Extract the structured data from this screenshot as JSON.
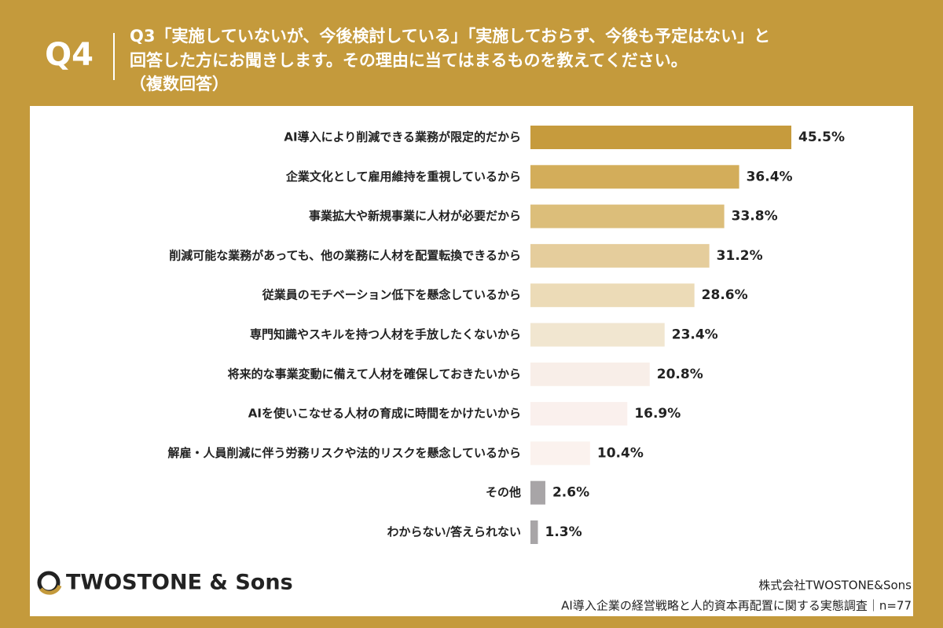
{
  "header": {
    "badge": "Q4",
    "title_lines": [
      "Q3「実施していないが、今後検討している」「実施しておらず、今後も予定はない」と",
      "回答した方にお聞きします。その理由に当てはまるものを教えてください。",
      "（複数回答）"
    ]
  },
  "chart_data": {
    "type": "hbar",
    "categories": [
      "AI導入により削減できる業務が限定的だから",
      "企業文化として雇用維持を重視しているから",
      "事業拡大や新規事業に人材が必要だから",
      "削減可能な業務があっても、他の業務に人材を配置転換できるから",
      "従業員のモチベーション低下を懸念しているから",
      "専門知識やスキルを持つ人材を手放したくないから",
      "将来的な事業変動に備えて人材を確保しておきたいから",
      "AIを使いこなせる人材の育成に時間をかけたいから",
      "解雇・人員削減に伴う労務リスクや法的リスクを懸念しているから",
      "その他",
      "わからない/答えられない"
    ],
    "values": [
      45.5,
      36.4,
      33.8,
      31.2,
      28.6,
      23.4,
      20.8,
      16.9,
      10.4,
      2.6,
      1.3
    ],
    "value_labels": [
      "45.5%",
      "36.4%",
      "33.8%",
      "31.2%",
      "28.6%",
      "23.4%",
      "20.8%",
      "16.9%",
      "10.4%",
      "2.6%",
      "1.3%"
    ],
    "colors": [
      "#c69b3d",
      "#d3ad5a",
      "#dcbe7a",
      "#e5cd9c",
      "#ecdbb7",
      "#f1e6d0",
      "#f8eee8",
      "#faf0ed",
      "#fbf2ee",
      "#a8a5a7",
      "#a8a5a7"
    ]
  },
  "footer": {
    "logo": "TWOSTONE & Sons",
    "company": "株式会社TWOSTONE&Sons",
    "survey": "AI導入企業の経営戦略と人的資本再配置に関する実態調査｜n=77"
  }
}
